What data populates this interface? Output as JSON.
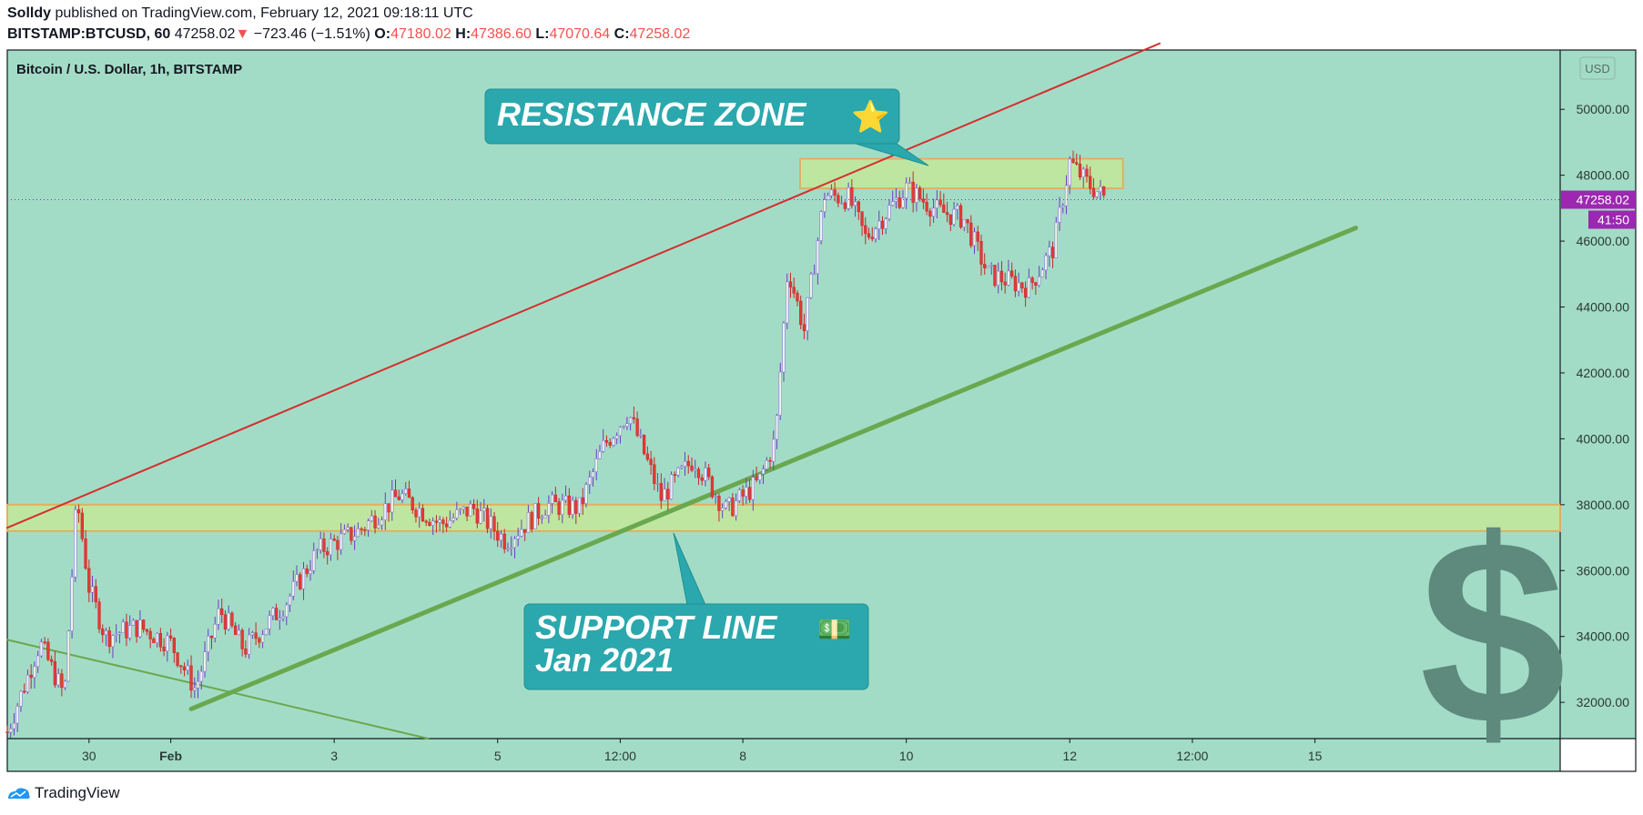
{
  "header": {
    "author": "Solldy",
    "published_text": "published on TradingView.com, February 12, 2021 09:18:11 UTC",
    "symbol": "BITSTAMP:BTCUSD, 60",
    "last": "47258.02",
    "change_arrow": "▼",
    "change": "−723.46 (−1.51%)",
    "o_label": "O:",
    "o_value": "47180.02",
    "h_label": "H:",
    "h_value": "47386.60",
    "l_label": "L:",
    "l_value": "47070.64",
    "c_label": "C:",
    "c_value": "47258.02"
  },
  "chart_data": {
    "type": "candlestick",
    "title": "Bitcoin / U.S. Dollar, 1h, BITSTAMP",
    "currency_label": "USD",
    "ylim": [
      30900,
      51800
    ],
    "y_ticks": [
      32000,
      34000,
      36000,
      38000,
      40000,
      42000,
      44000,
      46000,
      48000,
      50000
    ],
    "x_range_days": [
      -2.0,
      17.0
    ],
    "x_ticks": [
      {
        "label": "30",
        "day": -1.0
      },
      {
        "label": "Feb",
        "day": 0.0
      },
      {
        "label": "3",
        "day": 2.0
      },
      {
        "label": "5",
        "day": 4.0
      },
      {
        "label": "12:00",
        "day": 5.5
      },
      {
        "label": "8",
        "day": 7.0
      },
      {
        "label": "10",
        "day": 9.0
      },
      {
        "label": "12",
        "day": 11.0
      },
      {
        "label": "12:00",
        "day": 12.5
      },
      {
        "label": "15",
        "day": 14.0
      }
    ],
    "price_path": [
      [
        -2.0,
        31100
      ],
      [
        -1.6,
        33800
      ],
      [
        -1.3,
        32200
      ],
      [
        -1.15,
        38200
      ],
      [
        -1.0,
        35500
      ],
      [
        -0.8,
        34000
      ],
      [
        -0.4,
        34300
      ],
      [
        0.0,
        33800
      ],
      [
        0.3,
        32400
      ],
      [
        0.6,
        34800
      ],
      [
        0.9,
        33600
      ],
      [
        1.4,
        35000
      ],
      [
        1.8,
        36600
      ],
      [
        2.3,
        37200
      ],
      [
        2.8,
        38300
      ],
      [
        3.3,
        37400
      ],
      [
        3.7,
        37900
      ],
      [
        4.1,
        36900
      ],
      [
        4.6,
        38000
      ],
      [
        5.0,
        37900
      ],
      [
        5.3,
        39800
      ],
      [
        5.6,
        40800
      ],
      [
        6.0,
        38200
      ],
      [
        6.4,
        39400
      ],
      [
        6.8,
        37800
      ],
      [
        7.2,
        38700
      ],
      [
        7.4,
        40000
      ],
      [
        7.55,
        45200
      ],
      [
        7.75,
        43300
      ],
      [
        8.0,
        47400
      ],
      [
        8.3,
        47300
      ],
      [
        8.5,
        46100
      ],
      [
        9.0,
        47600
      ],
      [
        9.4,
        46900
      ],
      [
        9.7,
        46700
      ],
      [
        10.0,
        45000
      ],
      [
        10.5,
        44600
      ],
      [
        10.8,
        45800
      ],
      [
        11.0,
        48400
      ],
      [
        11.2,
        47800
      ],
      [
        11.45,
        47258
      ]
    ],
    "last_price_label": "47258.02",
    "countdown_label": "41:50",
    "lines": [
      {
        "name": "resistance-trend",
        "color": "#d32f2f",
        "from": [
          -2.0,
          37300
        ],
        "to": [
          12.1,
          52000
        ]
      },
      {
        "name": "support-line",
        "color": "#6aa84f",
        "from": [
          0.25,
          31800
        ],
        "to": [
          14.5,
          46400
        ]
      },
      {
        "name": "lower-trend",
        "color": "#6aa84f",
        "from": [
          -2.0,
          33900
        ],
        "to": [
          3.15,
          30900
        ]
      }
    ],
    "zones": [
      {
        "name": "support-zone",
        "day_from": -2.0,
        "day_to": 17.0,
        "y_from": 37200,
        "y_to": 38000
      },
      {
        "name": "resistance-zone",
        "day_from": 7.7,
        "day_to": 11.65,
        "y_from": 47600,
        "y_to": 48500
      }
    ],
    "annotations": [
      {
        "name": "resistance-callout",
        "lines": [
          "RESISTANCE ZONE"
        ],
        "glyph": "⭐",
        "pointer": [
          7.85,
          48300
        ]
      },
      {
        "name": "support-callout",
        "lines": [
          "SUPPORT LINE",
          "Jan 2021"
        ],
        "glyph": "💵",
        "pointer": [
          3.9,
          37150
        ]
      }
    ],
    "watermark_glyph": "$"
  },
  "footer": {
    "brand": "TradingView"
  }
}
